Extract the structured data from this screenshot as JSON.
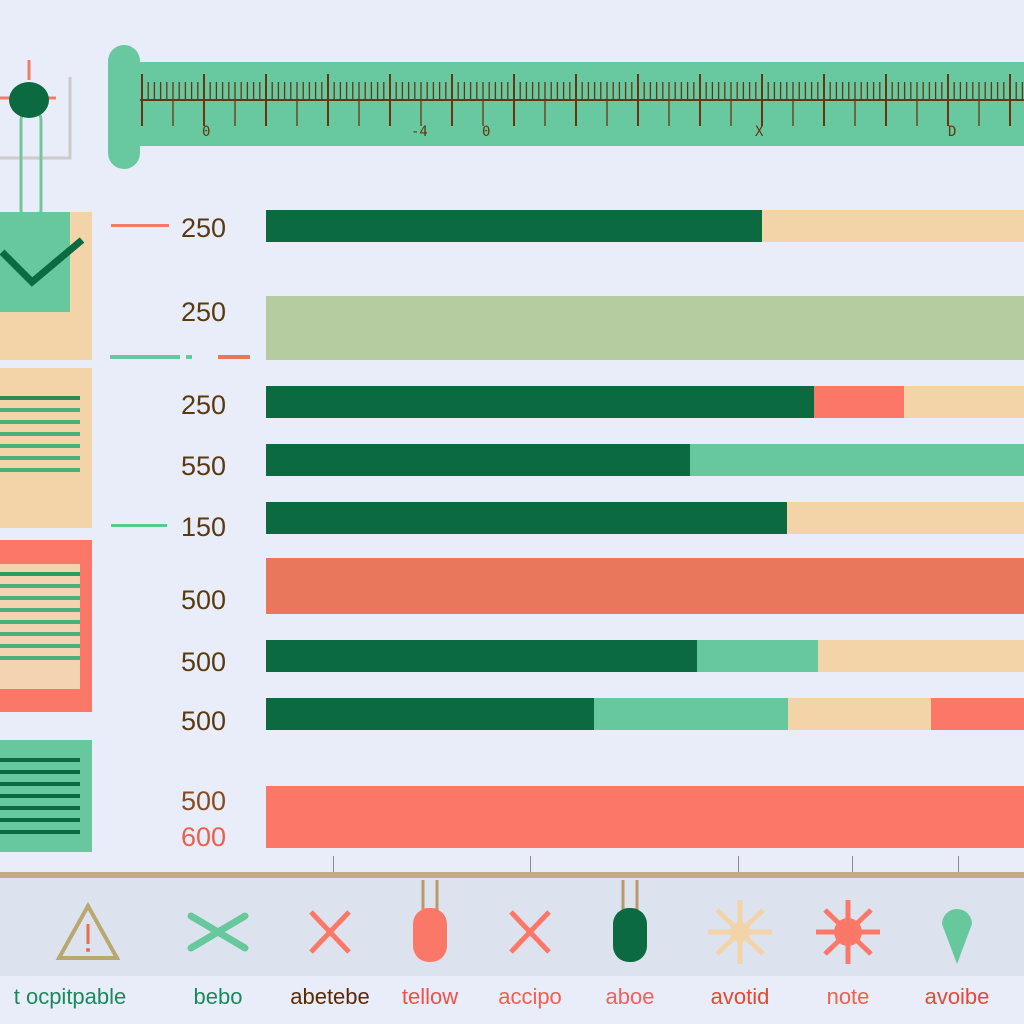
{
  "colors": {
    "dark_green": "#0b6a3f",
    "mint": "#66c89c",
    "peach": "#f2d4a8",
    "coral": "#fb7868",
    "sage": "#b5cba0",
    "orange": "#e8775c",
    "background": "#e9edf9"
  },
  "ruler": {
    "labels": [
      "0",
      "-4",
      "0",
      "X",
      "D"
    ]
  },
  "rows": [
    {
      "label": "250",
      "segments": [
        {
          "color": "dark_green",
          "fraction": 0.654
        },
        {
          "color": "peach",
          "fraction": 0.346
        }
      ]
    },
    {
      "label": "250",
      "segments": [
        {
          "color": "sage",
          "fraction": 1
        }
      ]
    },
    {
      "label": "250",
      "segments": [
        {
          "color": "dark_green",
          "fraction": 0.723
        },
        {
          "color": "coral",
          "fraction": 0.119
        },
        {
          "color": "peach",
          "fraction": 0.158
        }
      ]
    },
    {
      "label": "550",
      "segments": [
        {
          "color": "dark_green",
          "fraction": 0.559
        },
        {
          "color": "mint",
          "fraction": 0.441
        }
      ]
    },
    {
      "label": "150",
      "segments": [
        {
          "color": "dark_green",
          "fraction": 0.687
        },
        {
          "color": "peach",
          "fraction": 0.313
        }
      ]
    },
    {
      "label": "500",
      "segments": [
        {
          "color": "orange",
          "fraction": 1
        }
      ]
    },
    {
      "label": "500",
      "segments": [
        {
          "color": "dark_green",
          "fraction": 0.569
        },
        {
          "color": "mint",
          "fraction": 0.159
        },
        {
          "color": "peach",
          "fraction": 0.272
        }
      ]
    },
    {
      "label": "500",
      "segments": [
        {
          "color": "dark_green",
          "fraction": 0.433
        },
        {
          "color": "mint",
          "fraction": 0.256
        },
        {
          "color": "peach",
          "fraction": 0.188
        },
        {
          "color": "coral",
          "fraction": 0.123
        }
      ]
    },
    {
      "label": "500",
      "label2": "600",
      "segments": [
        {
          "color": "coral",
          "fraction": 1
        }
      ]
    }
  ],
  "toolbar": [
    {
      "icon": "warning-icon",
      "label": "t ocpitpable"
    },
    {
      "icon": "crossed-bones-icon",
      "label": "bebo"
    },
    {
      "icon": "x-icon",
      "label": "abetebe"
    },
    {
      "icon": "coral-tag-icon",
      "label": "tellow"
    },
    {
      "icon": "x-icon",
      "label": "accipo"
    },
    {
      "icon": "green-tag-icon",
      "label": "aboe"
    },
    {
      "icon": "sun-icon",
      "label": "avotid"
    },
    {
      "icon": "burst-icon",
      "label": "note"
    },
    {
      "icon": "pin-icon",
      "label": "avoibe"
    }
  ]
}
